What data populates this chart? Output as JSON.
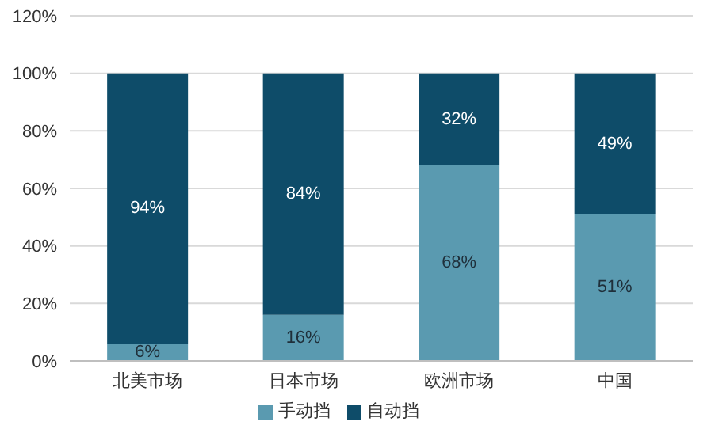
{
  "chart_data": {
    "type": "bar",
    "stacked": true,
    "categories": [
      "北美市场",
      "日本市场",
      "欧洲市场",
      "中国"
    ],
    "series": [
      {
        "name": "手动挡",
        "color": "#5a9ab0",
        "values": [
          6,
          16,
          68,
          51
        ],
        "value_labels": [
          "6%",
          "16%",
          "68%",
          "51%"
        ]
      },
      {
        "name": "自动挡",
        "color": "#0e4c69",
        "values": [
          94,
          84,
          32,
          49
        ],
        "value_labels": [
          "94%",
          "84%",
          "32%",
          "49%"
        ]
      }
    ],
    "ylim": [
      0,
      120
    ],
    "yticks": [
      {
        "value": 0,
        "label": "0%"
      },
      {
        "value": 20,
        "label": "20%"
      },
      {
        "value": 40,
        "label": "40%"
      },
      {
        "value": 60,
        "label": "60%"
      },
      {
        "value": 80,
        "label": "80%"
      },
      {
        "value": 100,
        "label": "100%"
      },
      {
        "value": 120,
        "label": "120%"
      }
    ],
    "grid": "y",
    "legend": "bottom"
  }
}
